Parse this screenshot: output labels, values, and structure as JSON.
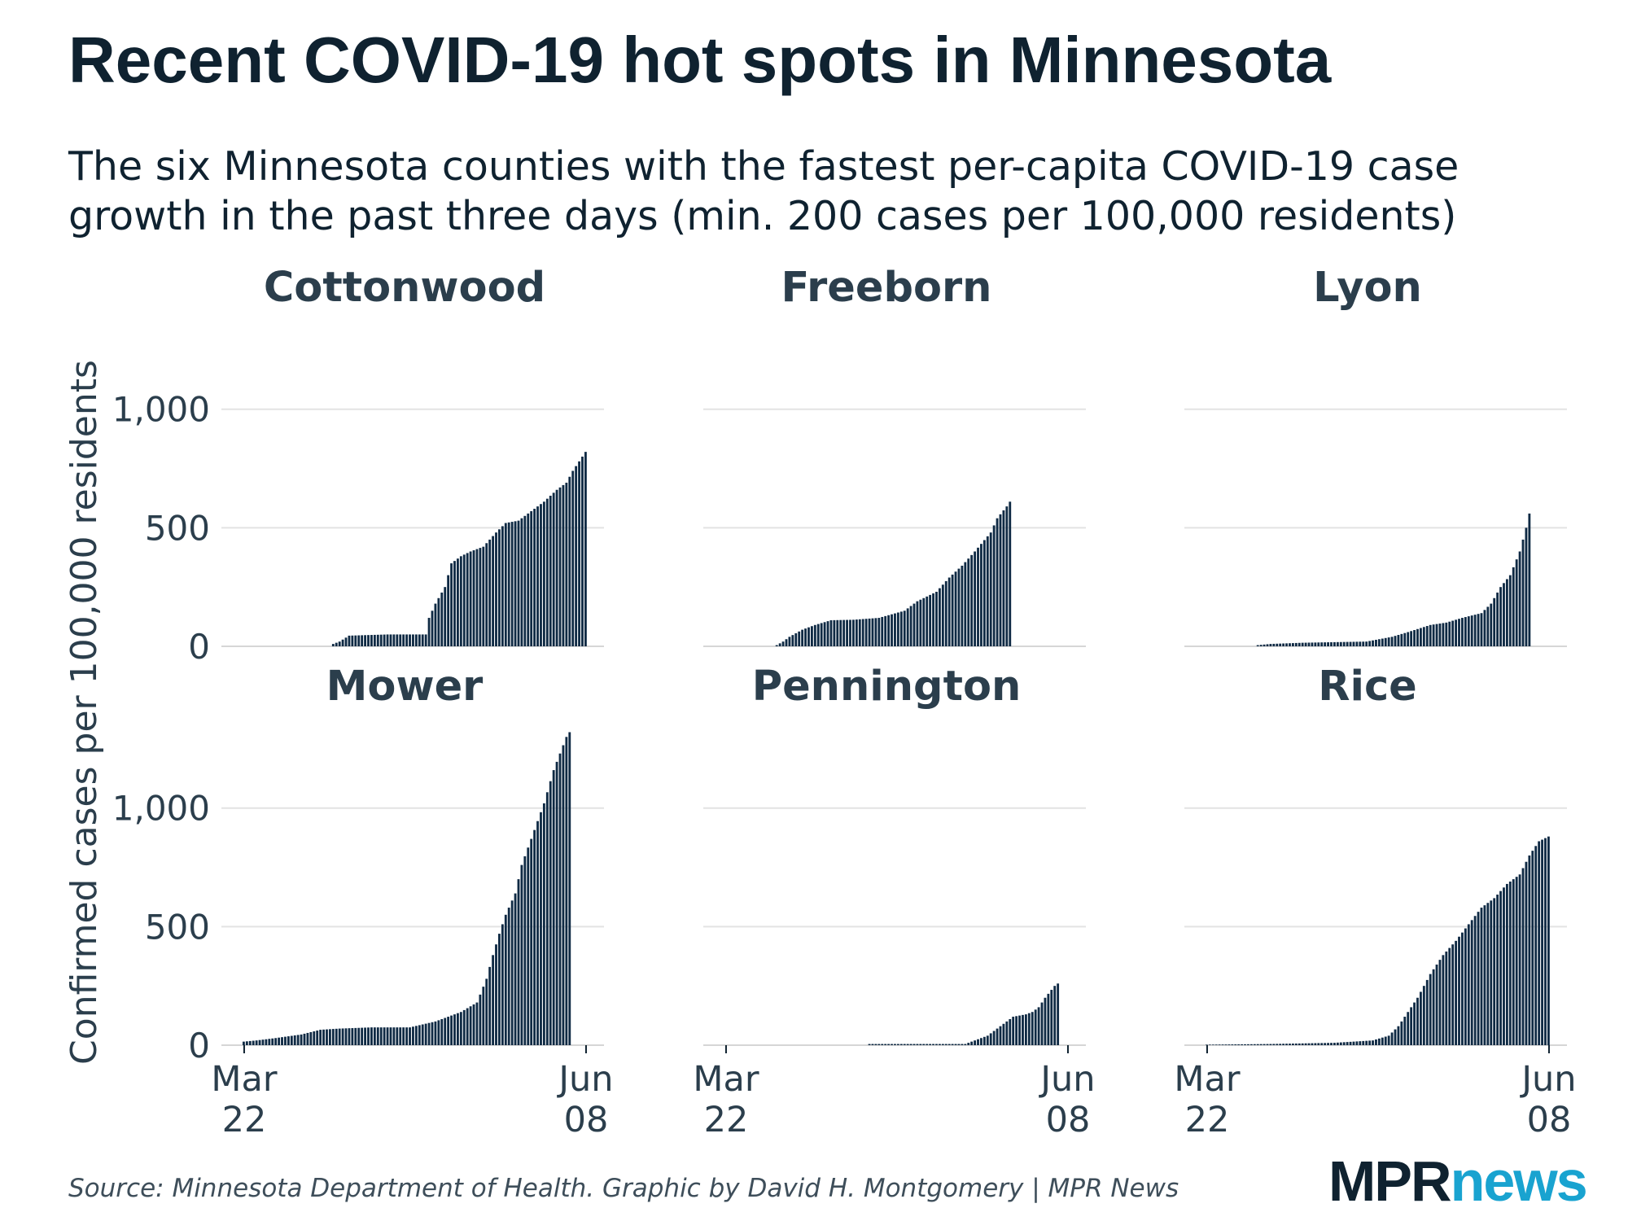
{
  "title": "Recent COVID-19 hot spots in Minnesota",
  "subtitle": "The six Minnesota counties with the fastest per-capita COVID-19 case growth in the past three days (min. 200 cases per 100,000 residents)",
  "source": "Source: Minnesota Department of Health. Graphic by David H. Montgomery | MPR News",
  "logo": {
    "mpr": "MPR",
    "news": "news"
  },
  "colors": {
    "bar": "#0f2a44",
    "grid": "#e3e3e3",
    "text": "#0f2230",
    "logo_accent": "#19a3d0"
  },
  "chart_data": {
    "type": "bar",
    "layout": "small-multiples 3x2",
    "ylabel": "Confirmed cases per 100,000 residents",
    "ylim": [
      0,
      1400
    ],
    "yticks": [
      0,
      500,
      1000
    ],
    "ytick_labels": [
      "0",
      "500",
      "1,000"
    ],
    "x_range": [
      "Mar 22",
      "Jun 08"
    ],
    "xtick_labels": [
      [
        "Mar",
        "22"
      ],
      [
        "Jun",
        "08"
      ]
    ],
    "grid": true,
    "series_note": "cumulative cases per 100,000 residents; anchor points (day index from Mar 22, value), bars drawn daily with linear interpolation",
    "panels": [
      {
        "name": "Cottonwood",
        "start_day": 28,
        "points": [
          [
            28,
            10
          ],
          [
            30,
            20
          ],
          [
            33,
            45
          ],
          [
            45,
            50
          ],
          [
            57,
            50
          ],
          [
            58,
            120
          ],
          [
            60,
            180
          ],
          [
            63,
            250
          ],
          [
            65,
            350
          ],
          [
            68,
            380
          ],
          [
            71,
            400
          ],
          [
            75,
            420
          ],
          [
            79,
            480
          ],
          [
            82,
            520
          ],
          [
            86,
            530
          ],
          [
            90,
            570
          ],
          [
            94,
            610
          ],
          [
            98,
            660
          ],
          [
            101,
            690
          ],
          [
            103,
            740
          ],
          [
            106,
            800
          ],
          [
            107,
            820
          ]
        ]
      },
      {
        "name": "Freeborn",
        "start_day": 16,
        "points": [
          [
            16,
            5
          ],
          [
            18,
            20
          ],
          [
            20,
            40
          ],
          [
            24,
            70
          ],
          [
            28,
            90
          ],
          [
            33,
            110
          ],
          [
            40,
            112
          ],
          [
            48,
            120
          ],
          [
            56,
            150
          ],
          [
            60,
            190
          ],
          [
            66,
            230
          ],
          [
            70,
            290
          ],
          [
            74,
            340
          ],
          [
            78,
            400
          ],
          [
            83,
            480
          ],
          [
            85,
            540
          ],
          [
            88,
            590
          ],
          [
            89,
            610
          ]
        ]
      },
      {
        "name": "Lyon",
        "start_day": 16,
        "points": [
          [
            16,
            5
          ],
          [
            20,
            10
          ],
          [
            30,
            15
          ],
          [
            50,
            20
          ],
          [
            58,
            40
          ],
          [
            63,
            60
          ],
          [
            70,
            90
          ],
          [
            75,
            100
          ],
          [
            80,
            120
          ],
          [
            86,
            140
          ],
          [
            89,
            180
          ],
          [
            92,
            250
          ],
          [
            95,
            300
          ],
          [
            98,
            400
          ],
          [
            100,
            500
          ],
          [
            101,
            560
          ]
        ]
      },
      {
        "name": "Mower",
        "start_day": 0,
        "points": [
          [
            0,
            15
          ],
          [
            4,
            20
          ],
          [
            10,
            30
          ],
          [
            18,
            45
          ],
          [
            24,
            65
          ],
          [
            30,
            70
          ],
          [
            40,
            75
          ],
          [
            52,
            75
          ],
          [
            60,
            100
          ],
          [
            68,
            140
          ],
          [
            73,
            180
          ],
          [
            76,
            280
          ],
          [
            78,
            380
          ],
          [
            80,
            470
          ],
          [
            82,
            550
          ],
          [
            85,
            640
          ],
          [
            87,
            760
          ],
          [
            90,
            870
          ],
          [
            94,
            1020
          ],
          [
            97,
            1160
          ],
          [
            99,
            1230
          ],
          [
            101,
            1300
          ],
          [
            102,
            1320
          ]
        ]
      },
      {
        "name": "Pennington",
        "start_day": 45,
        "points": [
          [
            45,
            5
          ],
          [
            60,
            5
          ],
          [
            75,
            5
          ],
          [
            78,
            20
          ],
          [
            82,
            40
          ],
          [
            86,
            80
          ],
          [
            90,
            120
          ],
          [
            94,
            130
          ],
          [
            96,
            140
          ],
          [
            98,
            160
          ],
          [
            100,
            200
          ],
          [
            103,
            250
          ],
          [
            104,
            260
          ]
        ]
      },
      {
        "name": "Rice",
        "start_day": 0,
        "points": [
          [
            0,
            2
          ],
          [
            20,
            5
          ],
          [
            40,
            10
          ],
          [
            52,
            20
          ],
          [
            57,
            40
          ],
          [
            60,
            80
          ],
          [
            63,
            140
          ],
          [
            66,
            200
          ],
          [
            70,
            300
          ],
          [
            74,
            380
          ],
          [
            78,
            440
          ],
          [
            82,
            510
          ],
          [
            86,
            580
          ],
          [
            90,
            620
          ],
          [
            94,
            680
          ],
          [
            98,
            720
          ],
          [
            101,
            800
          ],
          [
            104,
            860
          ],
          [
            107,
            880
          ]
        ]
      }
    ]
  }
}
